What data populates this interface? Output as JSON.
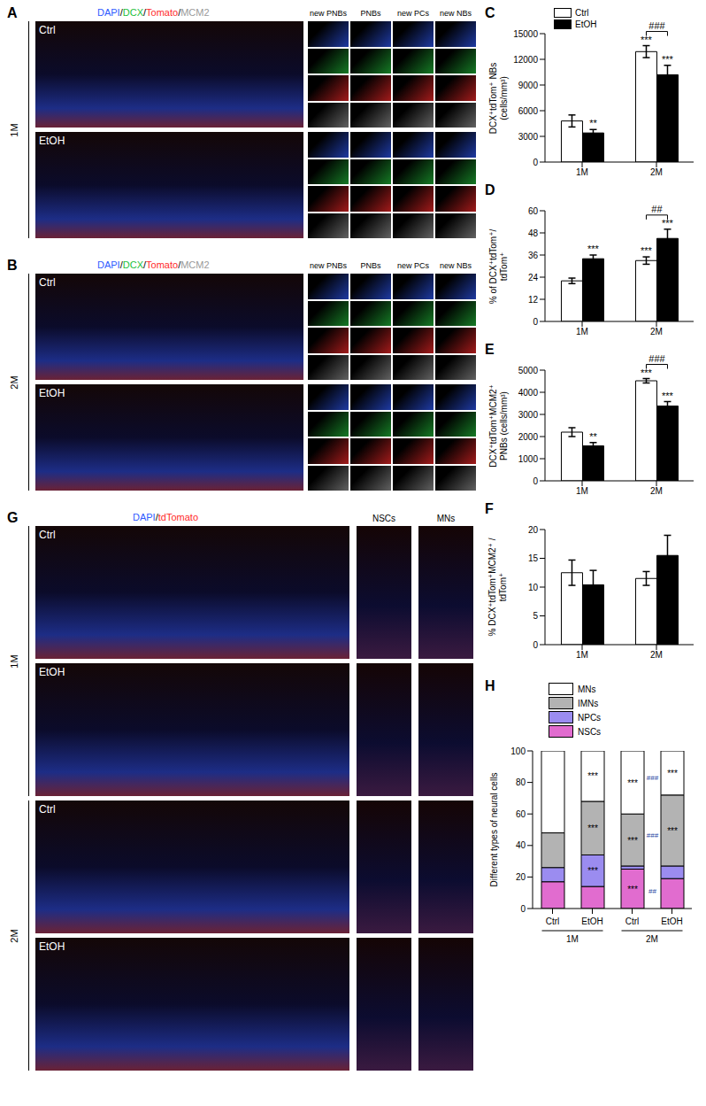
{
  "images": [
    {
      "label": "A",
      "age": "1M",
      "channels": [
        "DAPI",
        "DCX",
        "Tomato",
        "MCM2"
      ],
      "channel_colors": [
        "#2f5bff",
        "#22c03a",
        "#ff2a2a",
        "#9a9a9a"
      ],
      "separator": "/",
      "inset_columns": [
        "new PNBs",
        "PNBs",
        "new PCs",
        "new NBs"
      ],
      "rows": [
        "Ctrl",
        "EtOH"
      ]
    },
    {
      "label": "B",
      "age": "2M",
      "channels": [
        "DAPI",
        "DCX",
        "Tomato",
        "MCM2"
      ],
      "channel_colors": [
        "#2f5bff",
        "#22c03a",
        "#ff2a2a",
        "#9a9a9a"
      ],
      "separator": "/",
      "inset_columns": [
        "new PNBs",
        "PNBs",
        "new PCs",
        "new NBs"
      ],
      "rows": [
        "Ctrl",
        "EtOH"
      ]
    },
    {
      "label": "G",
      "channels": [
        "DAPI",
        "tdTomato"
      ],
      "channel_colors": [
        "#2f5bff",
        "#ff2a2a"
      ],
      "separator": "/",
      "inset_columns": [
        "NSCs",
        "MNs"
      ],
      "groups": [
        {
          "age": "1M",
          "rows": [
            "Ctrl",
            "EtOH"
          ]
        },
        {
          "age": "2M",
          "rows": [
            "Ctrl",
            "EtOH"
          ]
        }
      ]
    }
  ],
  "chart_data": [
    {
      "type": "bar",
      "panel_label": "C",
      "ylabel": [
        "DCX⁺tdTom⁺ NBs",
        "(cells/mm³)"
      ],
      "categories": [
        "1M",
        "2M"
      ],
      "series": [
        {
          "name": "Ctrl",
          "color": "#ffffff",
          "values": [
            4800,
            12900
          ],
          "errors": [
            700,
            700
          ]
        },
        {
          "name": "EtOH",
          "color": "#000000",
          "values": [
            3400,
            10200
          ],
          "errors": [
            400,
            1100
          ]
        }
      ],
      "ylim": [
        0,
        15000
      ],
      "yticks": [
        0,
        3000,
        6000,
        9000,
        12000,
        15000
      ],
      "legend": "top",
      "annotations": [
        {
          "category": "1M",
          "series": "EtOH",
          "text": "**"
        },
        {
          "category": "2M",
          "series": "Ctrl",
          "text": "***"
        },
        {
          "category": "2M",
          "series": "EtOH",
          "text": "***"
        }
      ],
      "brackets": [
        {
          "category": "2M",
          "text": "###"
        }
      ]
    },
    {
      "type": "bar",
      "panel_label": "D",
      "ylabel": [
        "% of DCX⁺tdTom⁺/",
        "tdTom⁺"
      ],
      "categories": [
        "1M",
        "2M"
      ],
      "series": [
        {
          "name": "Ctrl",
          "color": "#ffffff",
          "values": [
            22,
            33
          ],
          "errors": [
            1.5,
            2
          ]
        },
        {
          "name": "EtOH",
          "color": "#000000",
          "values": [
            34,
            45
          ],
          "errors": [
            2,
            5
          ]
        }
      ],
      "ylim": [
        0,
        60
      ],
      "yticks": [
        0,
        12,
        24,
        36,
        48,
        60
      ],
      "annotations": [
        {
          "category": "1M",
          "series": "EtOH",
          "text": "***"
        },
        {
          "category": "2M",
          "series": "Ctrl",
          "text": "***"
        },
        {
          "category": "2M",
          "series": "EtOH",
          "text": "***"
        }
      ],
      "brackets": [
        {
          "category": "2M",
          "text": "##"
        }
      ]
    },
    {
      "type": "bar",
      "panel_label": "E",
      "ylabel": [
        "DCX⁺tdTom⁺MCM2⁺",
        "PNBs (cells/mm³)"
      ],
      "categories": [
        "1M",
        "2M"
      ],
      "series": [
        {
          "name": "Ctrl",
          "color": "#ffffff",
          "values": [
            2200,
            4520
          ],
          "errors": [
            200,
            100
          ]
        },
        {
          "name": "EtOH",
          "color": "#000000",
          "values": [
            1580,
            3380
          ],
          "errors": [
            150,
            200
          ]
        }
      ],
      "ylim": [
        0,
        5000
      ],
      "yticks": [
        0,
        1000,
        2000,
        3000,
        4000,
        5000
      ],
      "annotations": [
        {
          "category": "1M",
          "series": "EtOH",
          "text": "**"
        },
        {
          "category": "2M",
          "series": "Ctrl",
          "text": "***"
        },
        {
          "category": "2M",
          "series": "EtOH",
          "text": "***"
        }
      ],
      "brackets": [
        {
          "category": "2M",
          "text": "###"
        }
      ]
    },
    {
      "type": "bar",
      "panel_label": "F",
      "ylabel": [
        "% DCX⁺tdTom⁺MCM2⁺ /",
        "tdTom⁺"
      ],
      "categories": [
        "1M",
        "2M"
      ],
      "series": [
        {
          "name": "Ctrl",
          "color": "#ffffff",
          "values": [
            12.5,
            11.5
          ],
          "errors": [
            2.2,
            1.2
          ]
        },
        {
          "name": "EtOH",
          "color": "#000000",
          "values": [
            10.4,
            15.5
          ],
          "errors": [
            2.5,
            3.5
          ]
        }
      ],
      "ylim": [
        0,
        20
      ],
      "yticks": [
        0,
        5,
        10,
        15,
        20
      ]
    },
    {
      "type": "bar",
      "stacked": true,
      "panel_label": "H",
      "ylabel": "Different types of neural cells",
      "categories": [
        "Ctrl",
        "EtOH",
        "Ctrl",
        "EtOH"
      ],
      "groups": [
        "1M",
        "1M",
        "2M",
        "2M"
      ],
      "series": [
        {
          "name": "NSCs",
          "color": "#e16ccf",
          "values": [
            17,
            14,
            25,
            19
          ]
        },
        {
          "name": "NPCs",
          "color": "#9b8cf0",
          "values": [
            9,
            20,
            2,
            8
          ]
        },
        {
          "name": "IMNs",
          "color": "#b3b3b3",
          "values": [
            22,
            34,
            33,
            45
          ]
        },
        {
          "name": "MNs",
          "color": "#ffffff",
          "values": [
            52,
            32,
            40,
            28
          ]
        }
      ],
      "ylim": [
        0,
        100
      ],
      "yticks": [
        0,
        20,
        40,
        60,
        80,
        100
      ],
      "legend": "top-left",
      "annotations": [
        {
          "group": "1M",
          "category": "EtOH",
          "series": "MNs",
          "text": "***"
        },
        {
          "group": "1M",
          "category": "EtOH",
          "series": "IMNs",
          "text": "***"
        },
        {
          "group": "1M",
          "category": "EtOH",
          "series": "NPCs",
          "text": "***"
        },
        {
          "group": "2M",
          "category": "Ctrl",
          "series": "MNs",
          "text": "***"
        },
        {
          "group": "2M",
          "category": "Ctrl",
          "series": "IMNs",
          "text": "***"
        },
        {
          "group": "2M",
          "category": "Ctrl",
          "series": "NSCs",
          "text": "***"
        },
        {
          "group": "2M",
          "category": "EtOH",
          "series": "MNs",
          "text": "***"
        },
        {
          "group": "2M",
          "category": "EtOH",
          "series": "IMNs",
          "text": "***"
        }
      ],
      "comparisons": [
        {
          "group": "2M",
          "series": "MNs",
          "text": "###"
        },
        {
          "group": "2M",
          "series": "IMNs",
          "text": "###"
        },
        {
          "group": "2M",
          "series": "NSCs",
          "text": "##"
        }
      ]
    }
  ]
}
